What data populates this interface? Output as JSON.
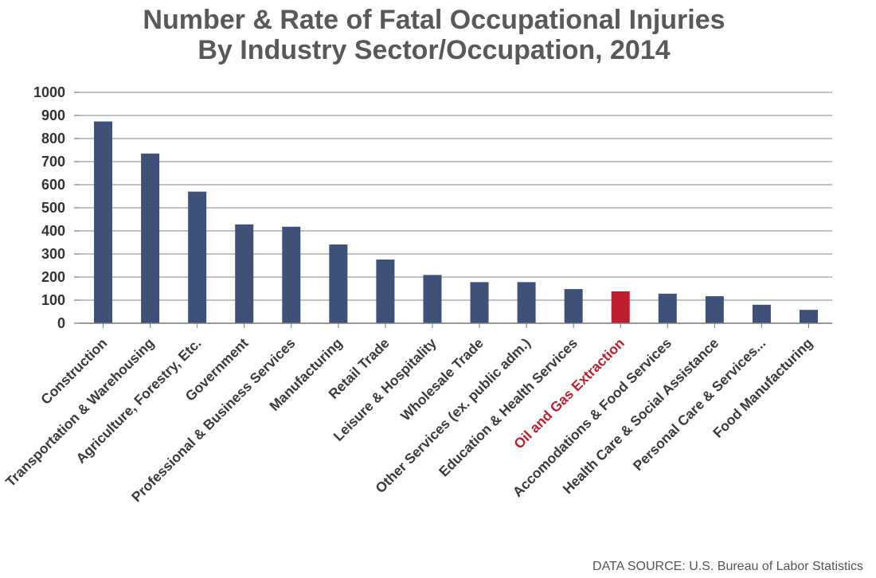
{
  "chart_data": {
    "type": "bar",
    "title": [
      "Number & Rate of Fatal Occupational Injuries",
      "By Industry Sector/Occupation, 2014"
    ],
    "xlabel": "",
    "ylabel": "",
    "ylim": [
      0,
      1000
    ],
    "yticks": [
      "1000",
      "900",
      "800",
      "700",
      "600",
      "500",
      "400",
      "300",
      "200",
      "100",
      "0"
    ],
    "grid": true,
    "categories": [
      "Construction",
      "Transportation & Warehousing",
      "Agriculture, Forestry, Etc.",
      "Government",
      "Professional & Business Services",
      "Manufacturing",
      "Retail Trade",
      "Leisure & Hospitality",
      "Wholesale Trade",
      "Other Services (ex. public adm.)",
      "Education & Health Services",
      "Oil and Gas Extraction",
      "Accomodations & Food Services",
      "Health Care & Social Assistance",
      "Personal Care & Services...",
      "Food Manufacturing"
    ],
    "values": [
      874,
      735,
      570,
      428,
      418,
      341,
      276,
      209,
      178,
      178,
      148,
      138,
      128,
      117,
      80,
      58
    ],
    "highlight_index": 11,
    "colors": {
      "bar": "#3f5079",
      "highlight": "#be1e2d",
      "grid": "#9a9a9a",
      "axis": "#777777"
    },
    "source": "DATA SOURCE: U.S. Bureau of Labor Statistics"
  }
}
